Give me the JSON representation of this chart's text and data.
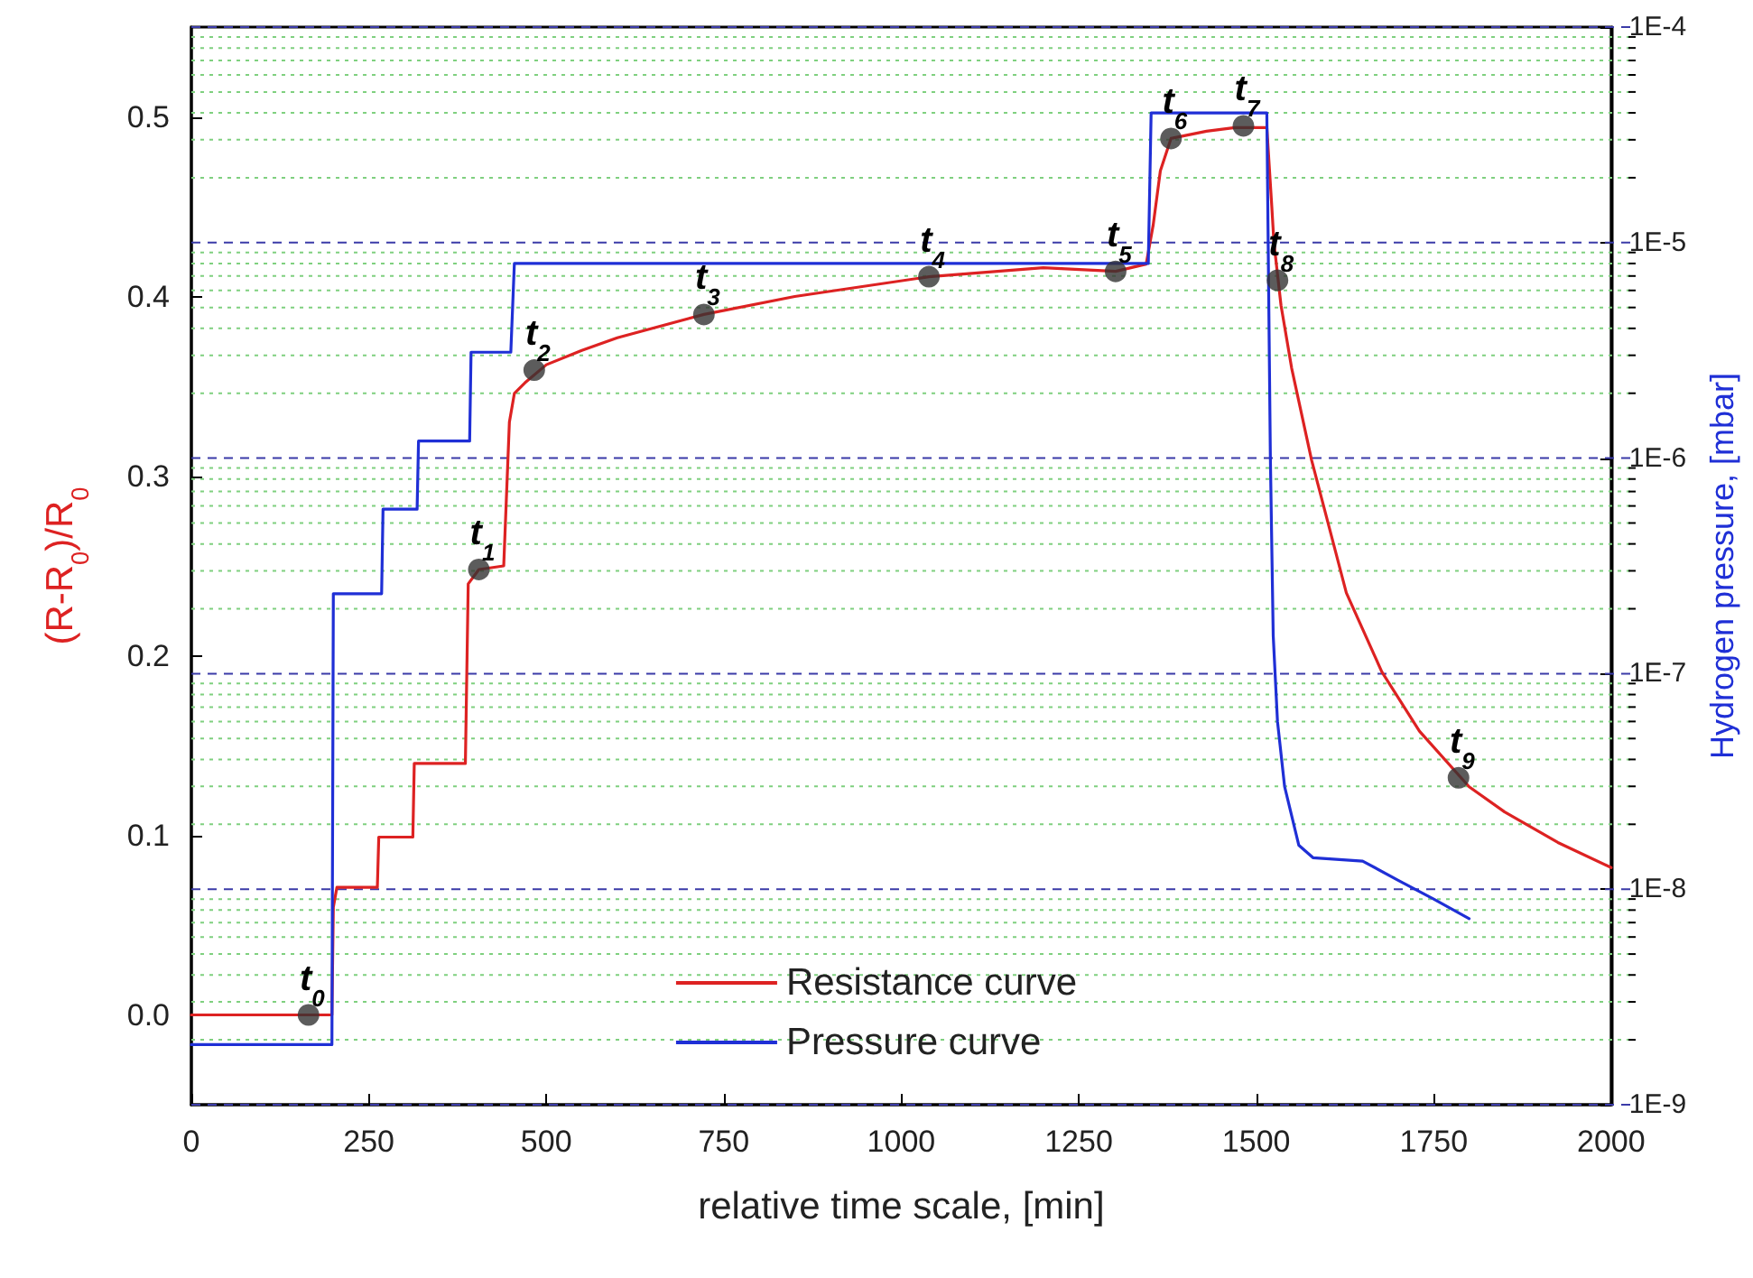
{
  "chart_data": {
    "type": "line",
    "xlabel": "relative time scale, [min]",
    "ylabel": "(R-R$_{0}$)/R$_{0}$",
    "y2label": "Hydrogen pressure, [mbar]",
    "xlim": [
      0,
      2000
    ],
    "xticks": [
      0,
      250,
      500,
      750,
      1000,
      1250,
      1500,
      1750,
      2000
    ],
    "ylim": [
      -0.05,
      0.55
    ],
    "yticks": [
      {
        "value": 0,
        "label": "0.0"
      },
      0.1,
      0.2,
      0.3,
      0.4,
      0.5
    ],
    "y2lim": [
      1e-09,
      0.0001
    ],
    "log": "y2",
    "y2ticks": [
      {
        "value": 1e-09,
        "label": "1E-9"
      },
      {
        "value": 2e-09,
        "label": null
      },
      {
        "value": 3e-09,
        "label": null
      },
      {
        "value": 4e-09,
        "label": null
      },
      {
        "value": 5e-09,
        "label": null
      },
      {
        "value": 6e-09,
        "label": null
      },
      {
        "value": 7e-09,
        "label": null
      },
      {
        "value": 8e-09,
        "label": null
      },
      {
        "value": 9e-09,
        "label": null
      },
      {
        "value": 1e-08,
        "label": "1E-8"
      },
      {
        "value": 2e-08,
        "label": null
      },
      {
        "value": 3e-08,
        "label": null
      },
      {
        "value": 4e-08,
        "label": null
      },
      {
        "value": 5e-08,
        "label": null
      },
      {
        "value": 6e-08,
        "label": null
      },
      {
        "value": 7e-08,
        "label": null
      },
      {
        "value": 8e-08,
        "label": null
      },
      {
        "value": 9e-08,
        "label": null
      },
      {
        "value": 1e-07,
        "label": "1E-7"
      },
      {
        "value": 2e-07,
        "label": null
      },
      {
        "value": 3e-07,
        "label": null
      },
      {
        "value": 4e-07,
        "label": null
      },
      {
        "value": 5e-07,
        "label": null
      },
      {
        "value": 6e-07,
        "label": null
      },
      {
        "value": 7e-07,
        "label": null
      },
      {
        "value": 8e-07,
        "label": null
      },
      {
        "value": 9e-07,
        "label": null
      },
      {
        "value": 1e-06,
        "label": "1E-6"
      },
      {
        "value": 2e-06,
        "label": null
      },
      {
        "value": 3e-06,
        "label": null
      },
      {
        "value": 4e-06,
        "label": null
      },
      {
        "value": 5e-06,
        "label": null
      },
      {
        "value": 6e-06,
        "label": null
      },
      {
        "value": 7e-06,
        "label": null
      },
      {
        "value": 8e-06,
        "label": null
      },
      {
        "value": 9e-06,
        "label": null
      },
      {
        "value": 1e-05,
        "label": "1E-5"
      },
      {
        "value": 2e-05,
        "label": null
      },
      {
        "value": 3e-05,
        "label": null
      },
      {
        "value": 4e-05,
        "label": null
      },
      {
        "value": 5e-05,
        "label": null
      },
      {
        "value": 6e-05,
        "label": null
      },
      {
        "value": 7e-05,
        "label": null
      },
      {
        "value": 8e-05,
        "label": null
      },
      {
        "value": 9e-05,
        "label": null
      },
      {
        "value": 0.0001,
        "label": "1E-4"
      }
    ],
    "grid": true,
    "legend": "bottom",
    "series": [
      {
        "name": "Resistance curve",
        "color": "#dd2222",
        "x": [
          0,
          198,
          200,
          205,
          262,
          264,
          312,
          314,
          386,
          390,
          405,
          440,
          448,
          455,
          470,
          500,
          550,
          600,
          722,
          850,
          1039,
          1200,
          1302,
          1345,
          1355,
          1365,
          1380,
          1430,
          1470,
          1515,
          1522,
          1525,
          1535,
          1550,
          1578,
          1627,
          1677,
          1730,
          1800,
          1850,
          1925,
          2000
        ],
        "values": [
          0,
          0,
          0.06,
          0.071,
          0.071,
          0.099,
          0.099,
          0.14,
          0.14,
          0.24,
          0.248,
          0.25,
          0.33,
          0.346,
          0.352,
          0.362,
          0.37,
          0.377,
          0.39,
          0.4,
          0.411,
          0.416,
          0.414,
          0.418,
          0.44,
          0.47,
          0.488,
          0.492,
          0.494,
          0.494,
          0.45,
          0.43,
          0.395,
          0.36,
          0.309,
          0.235,
          0.191,
          0.158,
          0.127,
          0.113,
          0.096,
          0.082
        ]
      },
      {
        "name": "Pressure curve",
        "color": "#1f2fd6",
        "axis": "y2",
        "x": [
          0,
          198,
          200,
          268,
          270,
          318,
          320,
          392,
          394,
          450,
          455,
          1348,
          1352,
          1515,
          1520,
          1524,
          1530,
          1540,
          1560,
          1580,
          1650,
          1700,
          1750,
          1800
        ],
        "values": [
          1.9e-09,
          1.9e-09,
          2.35e-07,
          2.35e-07,
          5.8e-07,
          5.8e-07,
          1.2e-06,
          1.2e-06,
          3.1e-06,
          3.1e-06,
          8e-06,
          8e-06,
          4e-05,
          4e-05,
          1e-06,
          1.5e-07,
          6e-08,
          3e-08,
          1.6e-08,
          1.4e-08,
          1.35e-08,
          1.1e-08,
          9e-09,
          7.3e-09
        ]
      },
      {
        "type": "scatter",
        "color": "#333333",
        "marker": "circle",
        "x": [
          165,
          405,
          483,
          722,
          1039,
          1302,
          1380,
          1482,
          1530,
          1785
        ],
        "values": [
          0,
          0.248,
          0.359,
          0.39,
          0.411,
          0.414,
          0.488,
          0.495,
          0.409,
          0.132
        ]
      }
    ],
    "annotations": [
      {
        "text": "t$_{0}$",
        "x": 165,
        "y": 0
      },
      {
        "text": "t$_{1}$",
        "x": 405,
        "y": 0.248
      },
      {
        "text": "t$_{2}$",
        "x": 483,
        "y": 0.359
      },
      {
        "text": "t$_{3}$",
        "x": 722,
        "y": 0.39
      },
      {
        "text": "t$_{4}$",
        "x": 1039,
        "y": 0.411
      },
      {
        "text": "t$_{5}$",
        "x": 1302,
        "y": 0.414
      },
      {
        "text": "t$_{6}$",
        "x": 1380,
        "y": 0.488
      },
      {
        "text": "t$_{7}$",
        "x": 1482,
        "y": 0.495
      },
      {
        "text": "t$_{8}$",
        "x": 1530,
        "y": 0.409
      },
      {
        "text": "t$_{9}$",
        "x": 1785,
        "y": 0.132
      }
    ]
  }
}
